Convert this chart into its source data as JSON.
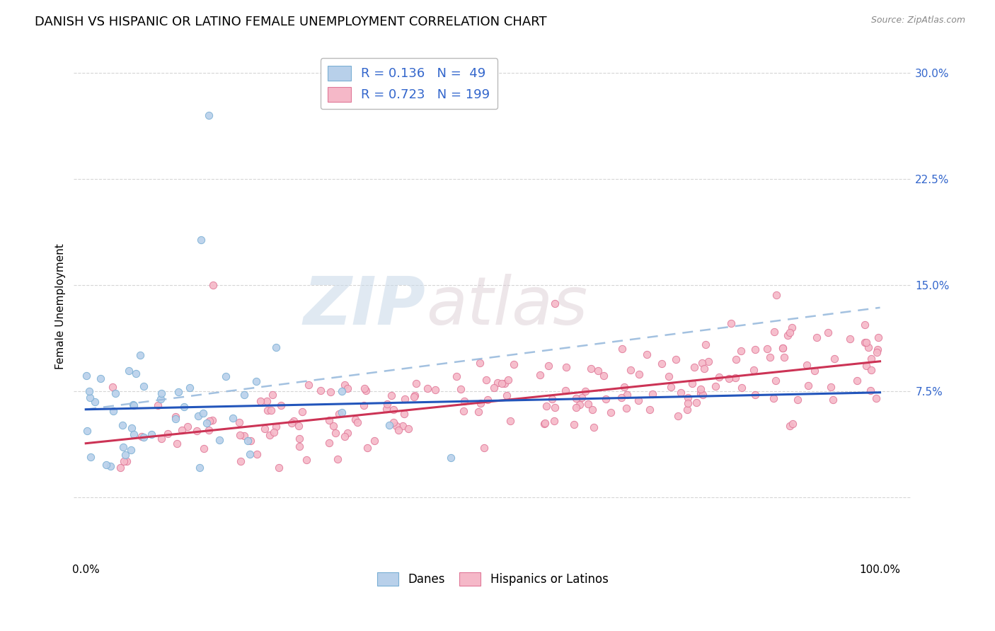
{
  "title": "DANISH VS HISPANIC OR LATINO FEMALE UNEMPLOYMENT CORRELATION CHART",
  "source": "Source: ZipAtlas.com",
  "ylabel": "Female Unemployment",
  "danes_color": "#b8d0ea",
  "danes_edge": "#7aafd4",
  "hispanic_color": "#f5b8c8",
  "hispanic_edge": "#e07898",
  "danes_R": 0.136,
  "danes_N": 49,
  "hispanic_R": 0.723,
  "hispanic_N": 199,
  "danes_line_color": "#2255bb",
  "hispanic_line_color": "#cc3355",
  "dashed_line_color": "#99bbdd",
  "danes_line_intercept": 0.062,
  "danes_line_slope": 0.012,
  "hispanic_line_intercept": 0.038,
  "hispanic_line_slope": 0.058,
  "dashed_line_intercept": 0.062,
  "dashed_line_slope": 0.072,
  "watermark_zip": "ZIP",
  "watermark_atlas": "atlas",
  "background_color": "#ffffff",
  "grid_color": "#cccccc",
  "legend_text_color": "#3366cc",
  "title_fontsize": 13,
  "axis_label_fontsize": 11,
  "tick_fontsize": 11,
  "ytick_vals": [
    0.0,
    0.075,
    0.15,
    0.225,
    0.3
  ],
  "ytick_labels": [
    "",
    "7.5%",
    "15.0%",
    "22.5%",
    "30.0%"
  ],
  "xtick_vals": [
    0.0,
    0.2,
    0.4,
    0.6,
    0.8,
    1.0
  ],
  "xtick_labels": [
    "0.0%",
    "",
    "",
    "",
    "",
    "100.0%"
  ],
  "ylim": [
    -0.045,
    0.315
  ],
  "xlim": [
    -0.015,
    1.04
  ]
}
